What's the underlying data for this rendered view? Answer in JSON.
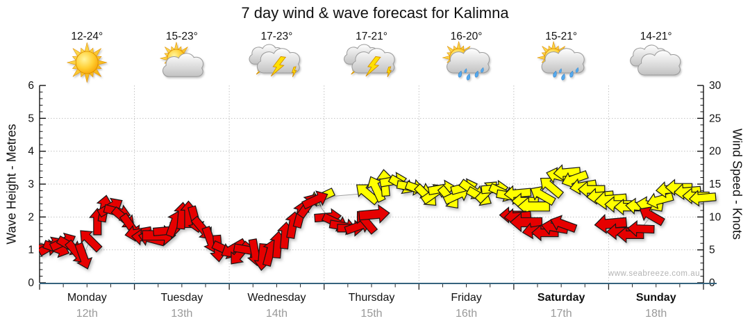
{
  "title": "7 day wind & wave forecast for Kalimna",
  "watermark": "www.seabreeze.com.au",
  "colors": {
    "arrow_red": "#e60000",
    "arrow_yellow": "#ffff00",
    "arrow_outline": "#151515",
    "grid": "#c2c2c2",
    "axis_black": "#111111",
    "x_axis_line": "#35637e",
    "day_name": "#111111",
    "date_gray": "#999999",
    "watermark_gray": "#b4b4b4"
  },
  "chart_data": {
    "type": "scatter",
    "title": "7 day wind & wave forecast for Kalimna",
    "xlabel": "",
    "grid": "dotted horizontal line at each whole metre (every 5 knots); dotted vertical line at each day boundary",
    "days": [
      {
        "name": "Monday",
        "date": "12th",
        "temp": "12-24°",
        "icon": "sunny",
        "bold": false
      },
      {
        "name": "Tuesday",
        "date": "13th",
        "temp": "15-23°",
        "icon": "partly-cloudy",
        "bold": false
      },
      {
        "name": "Wednesday",
        "date": "14th",
        "temp": "17-23°",
        "icon": "thunderstorm",
        "bold": false
      },
      {
        "name": "Thursday",
        "date": "15th",
        "temp": "17-21°",
        "icon": "thunderstorm",
        "bold": false
      },
      {
        "name": "Friday",
        "date": "16th",
        "temp": "16-20°",
        "icon": "sun-showers",
        "bold": false
      },
      {
        "name": "Saturday",
        "date": "17th",
        "temp": "15-21°",
        "icon": "sun-showers",
        "bold": true
      },
      {
        "name": "Sunday",
        "date": "18th",
        "temp": "14-21°",
        "icon": "cloudy",
        "bold": true
      }
    ],
    "y_left": {
      "label": "Wave Height - Metres",
      "range": [
        0,
        6
      ],
      "major_tick": 1,
      "minor_tick": 0.2,
      "ticks": [
        "0",
        "1",
        "2",
        "3",
        "4",
        "5",
        "6"
      ]
    },
    "y_right": {
      "label": "Wind Speed - Knots",
      "range": [
        0,
        30
      ],
      "major_tick": 5,
      "minor_tick": 1,
      "ticks": [
        "0",
        "5",
        "10",
        "15",
        "20",
        "25",
        "30"
      ]
    },
    "point_format": "[day_offset_0to7, value_in_knots (wave metres = knots/5), arrow_direction_deg (0=east, CCW+), optional_size_scale]",
    "series": [
      {
        "name": "wind-speed-arrows",
        "color_key": "arrow_yellow",
        "axis": "right",
        "points": [
          [
            2.97,
            13.0,
            205
          ],
          [
            3.45,
            13.6,
            140
          ],
          [
            3.55,
            14.3,
            115
          ],
          [
            3.64,
            15.2,
            95
          ],
          [
            3.73,
            15.5,
            10
          ],
          [
            3.82,
            14.9,
            -30
          ],
          [
            3.91,
            14.6,
            -10
          ],
          [
            4.0,
            14.2,
            -20
          ],
          [
            4.08,
            13.2,
            -45
          ],
          [
            4.16,
            13.6,
            35
          ],
          [
            4.24,
            14.3,
            10
          ],
          [
            4.32,
            12.9,
            -50
          ],
          [
            4.4,
            13.3,
            25
          ],
          [
            4.48,
            14.5,
            15
          ],
          [
            4.56,
            14.1,
            -35
          ],
          [
            4.64,
            13.1,
            -30
          ],
          [
            4.72,
            13.9,
            45
          ],
          [
            4.8,
            14.3,
            5
          ],
          [
            4.88,
            13.7,
            -25
          ],
          [
            4.96,
            13.2,
            -10
          ],
          [
            5.04,
            13.6,
            185
          ],
          [
            5.12,
            12.4,
            180
          ],
          [
            5.21,
            11.6,
            180,
            1.2
          ],
          [
            5.3,
            13.3,
            150
          ],
          [
            5.39,
            14.6,
            140
          ],
          [
            5.48,
            16.2,
            165
          ],
          [
            5.56,
            16.8,
            185
          ],
          [
            5.64,
            15.8,
            200
          ],
          [
            5.73,
            14.7,
            190
          ],
          [
            5.82,
            14.2,
            180
          ],
          [
            5.91,
            13.2,
            185
          ],
          [
            6.02,
            12.6,
            185,
            1.2
          ],
          [
            6.1,
            11.9,
            180
          ],
          [
            6.2,
            11.5,
            180
          ],
          [
            6.32,
            11.6,
            175
          ],
          [
            6.43,
            11.8,
            170
          ],
          [
            6.54,
            12.6,
            195
          ],
          [
            6.64,
            14.2,
            185
          ],
          [
            6.74,
            14.5,
            180
          ],
          [
            6.83,
            13.9,
            185
          ],
          [
            6.92,
            13.2,
            180
          ],
          [
            6.99,
            12.9,
            185
          ]
        ]
      },
      {
        "name": "wave-swell-arrows-mon-thu",
        "color_key": "arrow_red",
        "axis": "left",
        "points": [
          [
            0.06,
            5.3,
            5
          ],
          [
            0.12,
            5.6,
            30
          ],
          [
            0.18,
            5.2,
            -20
          ],
          [
            0.25,
            6.2,
            25
          ],
          [
            0.32,
            5.6,
            -30
          ],
          [
            0.39,
            4.6,
            -50
          ],
          [
            0.46,
            4.0,
            -70
          ],
          [
            0.53,
            6.5,
            135
          ],
          [
            0.61,
            9.3,
            90
          ],
          [
            0.68,
            11.3,
            80
          ],
          [
            0.75,
            11.5,
            30
          ],
          [
            0.82,
            10.8,
            -15
          ],
          [
            0.89,
            9.8,
            -40
          ],
          [
            0.96,
            8.6,
            -55
          ],
          [
            1.04,
            7.6,
            -170
          ],
          [
            1.11,
            6.9,
            175
          ],
          [
            1.18,
            6.7,
            165
          ],
          [
            1.26,
            7.2,
            0,
            1.25
          ],
          [
            1.34,
            7.9,
            5
          ],
          [
            1.42,
            9.0,
            70
          ],
          [
            1.5,
            10.2,
            85
          ],
          [
            1.57,
            10.4,
            90
          ],
          [
            1.64,
            9.6,
            -75
          ],
          [
            1.72,
            8.2,
            -50
          ],
          [
            1.8,
            6.5,
            -70
          ],
          [
            1.88,
            5.2,
            -85
          ],
          [
            1.96,
            5.0,
            -25
          ],
          [
            2.04,
            5.2,
            -150
          ],
          [
            2.11,
            4.4,
            -130
          ],
          [
            2.19,
            5.0,
            -10
          ],
          [
            2.27,
            4.6,
            -80
          ],
          [
            2.35,
            3.9,
            -95
          ],
          [
            2.43,
            4.6,
            75
          ],
          [
            2.51,
            5.8,
            85
          ],
          [
            2.59,
            7.2,
            85
          ],
          [
            2.67,
            8.8,
            80
          ],
          [
            2.75,
            10.4,
            75
          ],
          [
            2.83,
            11.8,
            55
          ],
          [
            2.91,
            12.6,
            25
          ],
          [
            3.04,
            10.0,
            5
          ],
          [
            3.12,
            9.2,
            -25
          ],
          [
            3.2,
            8.6,
            -10
          ],
          [
            3.28,
            8.3,
            0
          ],
          [
            3.36,
            8.6,
            20
          ],
          [
            3.44,
            9.3,
            130
          ],
          [
            3.53,
            10.4,
            5,
            1.15
          ]
        ]
      },
      {
        "name": "wave-swell-arrows-fri-sat",
        "color_key": "arrow_red",
        "axis": "left",
        "points": [
          [
            4.99,
            10.3,
            180
          ],
          [
            5.04,
            10.1,
            185
          ],
          [
            5.13,
            9.2,
            180,
            1.2
          ],
          [
            5.23,
            8.0,
            190
          ],
          [
            5.33,
            7.6,
            180
          ],
          [
            5.43,
            8.4,
            170
          ],
          [
            5.52,
            8.9,
            160
          ]
        ]
      },
      {
        "name": "wave-swell-arrows-sun",
        "color_key": "arrow_red",
        "axis": "left",
        "points": [
          [
            6.02,
            9.0,
            185,
            1.2
          ],
          [
            6.12,
            7.8,
            182
          ],
          [
            6.23,
            7.3,
            180
          ],
          [
            6.34,
            8.2,
            178
          ],
          [
            6.45,
            10.2,
            150
          ]
        ]
      }
    ]
  }
}
